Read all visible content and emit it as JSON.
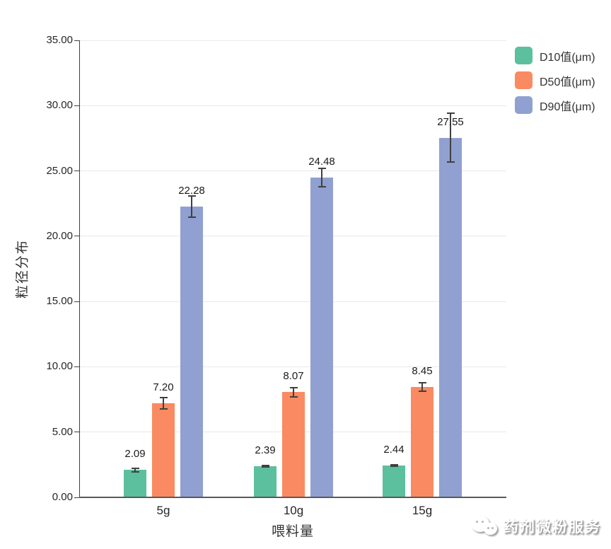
{
  "chart_data": {
    "type": "bar",
    "title": "",
    "categories": [
      "5g",
      "10g",
      "15g"
    ],
    "series": [
      {
        "key": "d10",
        "name": "D10值(μm)",
        "color": "#5CBF9E",
        "values": [
          2.09,
          2.39,
          2.44
        ],
        "labels": [
          "2.09",
          "2.39",
          "2.44"
        ],
        "errors": [
          0.15,
          0.06,
          0.06
        ]
      },
      {
        "key": "d50",
        "name": "D50值(μm)",
        "color": "#FA8A62",
        "values": [
          7.2,
          8.07,
          8.45
        ],
        "labels": [
          "7.20",
          "8.07",
          "8.45"
        ],
        "errors": [
          0.45,
          0.35,
          0.33
        ]
      },
      {
        "key": "d90",
        "name": "D90值(μm)",
        "color": "#90A0D0",
        "values": [
          22.28,
          24.48,
          27.55
        ],
        "labels": [
          "22.28",
          "24.48",
          "27.55"
        ],
        "errors": [
          0.8,
          0.7,
          1.85
        ]
      }
    ],
    "xlabel": "喂料量",
    "ylabel": "粒径分布",
    "ylim": [
      0,
      35
    ],
    "ytick_step": 5,
    "ytick_labels": [
      "0.00",
      "5.00",
      "10.00",
      "15.00",
      "20.00",
      "25.00",
      "30.00",
      "35.00"
    ],
    "grid": true,
    "legend_position": "top-right",
    "axis_color": "#595959",
    "yaxis_line_color": "#404040",
    "grid_color": "#E9E9E9",
    "error_bar_color": "#404040"
  },
  "watermark": {
    "text": "药剂微粉服务",
    "icon": "wechat-icon"
  }
}
